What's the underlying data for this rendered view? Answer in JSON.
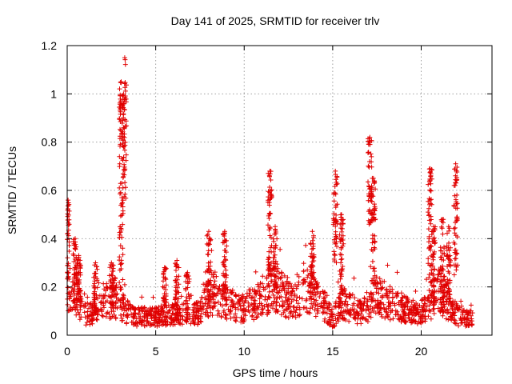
{
  "chart_data": {
    "type": "scatter",
    "title": "Day 141 of 2025, SRMTID for receiver trlv",
    "xlabel": "GPS time / hours",
    "ylabel": "SRMTID / TECUs",
    "xlim": [
      0,
      24
    ],
    "ylim": [
      0,
      1.2
    ],
    "xticks": [
      "0",
      "5",
      "10",
      "15",
      "20"
    ],
    "xtick_values": [
      0,
      5,
      10,
      15,
      20
    ],
    "yticks": [
      "0",
      "0.2",
      "0.4",
      "0.6",
      "0.8",
      "1",
      "1.2"
    ],
    "ytick_values": [
      0,
      0.2,
      0.4,
      0.6,
      0.8,
      1.0,
      1.2
    ],
    "grid": true,
    "marker": "+",
    "color": "#e00000",
    "x_end": 22.9,
    "background_profile": [
      [
        0.0,
        0.2
      ],
      [
        0.5,
        0.18
      ],
      [
        1.0,
        0.09
      ],
      [
        1.5,
        0.1
      ],
      [
        2.0,
        0.13
      ],
      [
        2.5,
        0.15
      ],
      [
        3.0,
        0.14
      ],
      [
        3.5,
        0.09
      ],
      [
        4.0,
        0.08
      ],
      [
        4.5,
        0.08
      ],
      [
        5.0,
        0.08
      ],
      [
        5.5,
        0.09
      ],
      [
        6.0,
        0.09
      ],
      [
        6.5,
        0.09
      ],
      [
        7.0,
        0.09
      ],
      [
        7.5,
        0.1
      ],
      [
        8.0,
        0.17
      ],
      [
        8.5,
        0.18
      ],
      [
        9.0,
        0.14
      ],
      [
        9.5,
        0.12
      ],
      [
        10.0,
        0.12
      ],
      [
        10.5,
        0.14
      ],
      [
        11.0,
        0.16
      ],
      [
        11.5,
        0.2
      ],
      [
        12.0,
        0.2
      ],
      [
        12.5,
        0.15
      ],
      [
        13.0,
        0.16
      ],
      [
        13.5,
        0.2
      ],
      [
        14.0,
        0.16
      ],
      [
        14.5,
        0.13
      ],
      [
        15.0,
        0.07
      ],
      [
        15.5,
        0.14
      ],
      [
        16.0,
        0.12
      ],
      [
        16.5,
        0.1
      ],
      [
        17.0,
        0.12
      ],
      [
        17.5,
        0.17
      ],
      [
        18.0,
        0.15
      ],
      [
        18.5,
        0.13
      ],
      [
        19.0,
        0.12
      ],
      [
        19.5,
        0.1
      ],
      [
        20.0,
        0.1
      ],
      [
        20.5,
        0.14
      ],
      [
        21.0,
        0.2
      ],
      [
        21.5,
        0.14
      ],
      [
        22.0,
        0.09
      ],
      [
        22.5,
        0.07
      ],
      [
        22.9,
        0.07
      ]
    ],
    "peaks": [
      {
        "x": 0.05,
        "ymax": 0.56,
        "ymin": 0.12
      },
      {
        "x": 0.45,
        "ymax": 0.4,
        "ymin": 0.1
      },
      {
        "x": 0.65,
        "ymax": 0.33,
        "ymin": 0.1
      },
      {
        "x": 1.6,
        "ymax": 0.3,
        "ymin": 0.1
      },
      {
        "x": 2.5,
        "ymax": 0.3,
        "ymin": 0.1
      },
      {
        "x": 3.05,
        "ymax": 1.05,
        "ymin": 0.2
      },
      {
        "x": 3.25,
        "ymax": 1.15,
        "ymin": 0.55
      },
      {
        "x": 5.5,
        "ymax": 0.28,
        "ymin": 0.08
      },
      {
        "x": 6.2,
        "ymax": 0.31,
        "ymin": 0.08
      },
      {
        "x": 6.8,
        "ymax": 0.26,
        "ymin": 0.08
      },
      {
        "x": 8.0,
        "ymax": 0.43,
        "ymin": 0.12
      },
      {
        "x": 8.9,
        "ymax": 0.43,
        "ymin": 0.12
      },
      {
        "x": 11.45,
        "ymax": 0.68,
        "ymin": 0.2
      },
      {
        "x": 11.75,
        "ymax": 0.45,
        "ymin": 0.15
      },
      {
        "x": 13.85,
        "ymax": 0.43,
        "ymin": 0.15
      },
      {
        "x": 15.15,
        "ymax": 0.68,
        "ymin": 0.3
      },
      {
        "x": 15.5,
        "ymax": 0.5,
        "ymin": 0.12
      },
      {
        "x": 17.1,
        "ymax": 0.82,
        "ymin": 0.45
      },
      {
        "x": 17.3,
        "ymax": 0.65,
        "ymin": 0.2
      },
      {
        "x": 20.5,
        "ymax": 0.69,
        "ymin": 0.2
      },
      {
        "x": 20.7,
        "ymax": 0.45,
        "ymin": 0.1
      },
      {
        "x": 21.2,
        "ymax": 0.48,
        "ymin": 0.08
      },
      {
        "x": 21.55,
        "ymax": 0.45,
        "ymin": 0.12
      },
      {
        "x": 21.95,
        "ymax": 0.71,
        "ymin": 0.25
      }
    ]
  }
}
